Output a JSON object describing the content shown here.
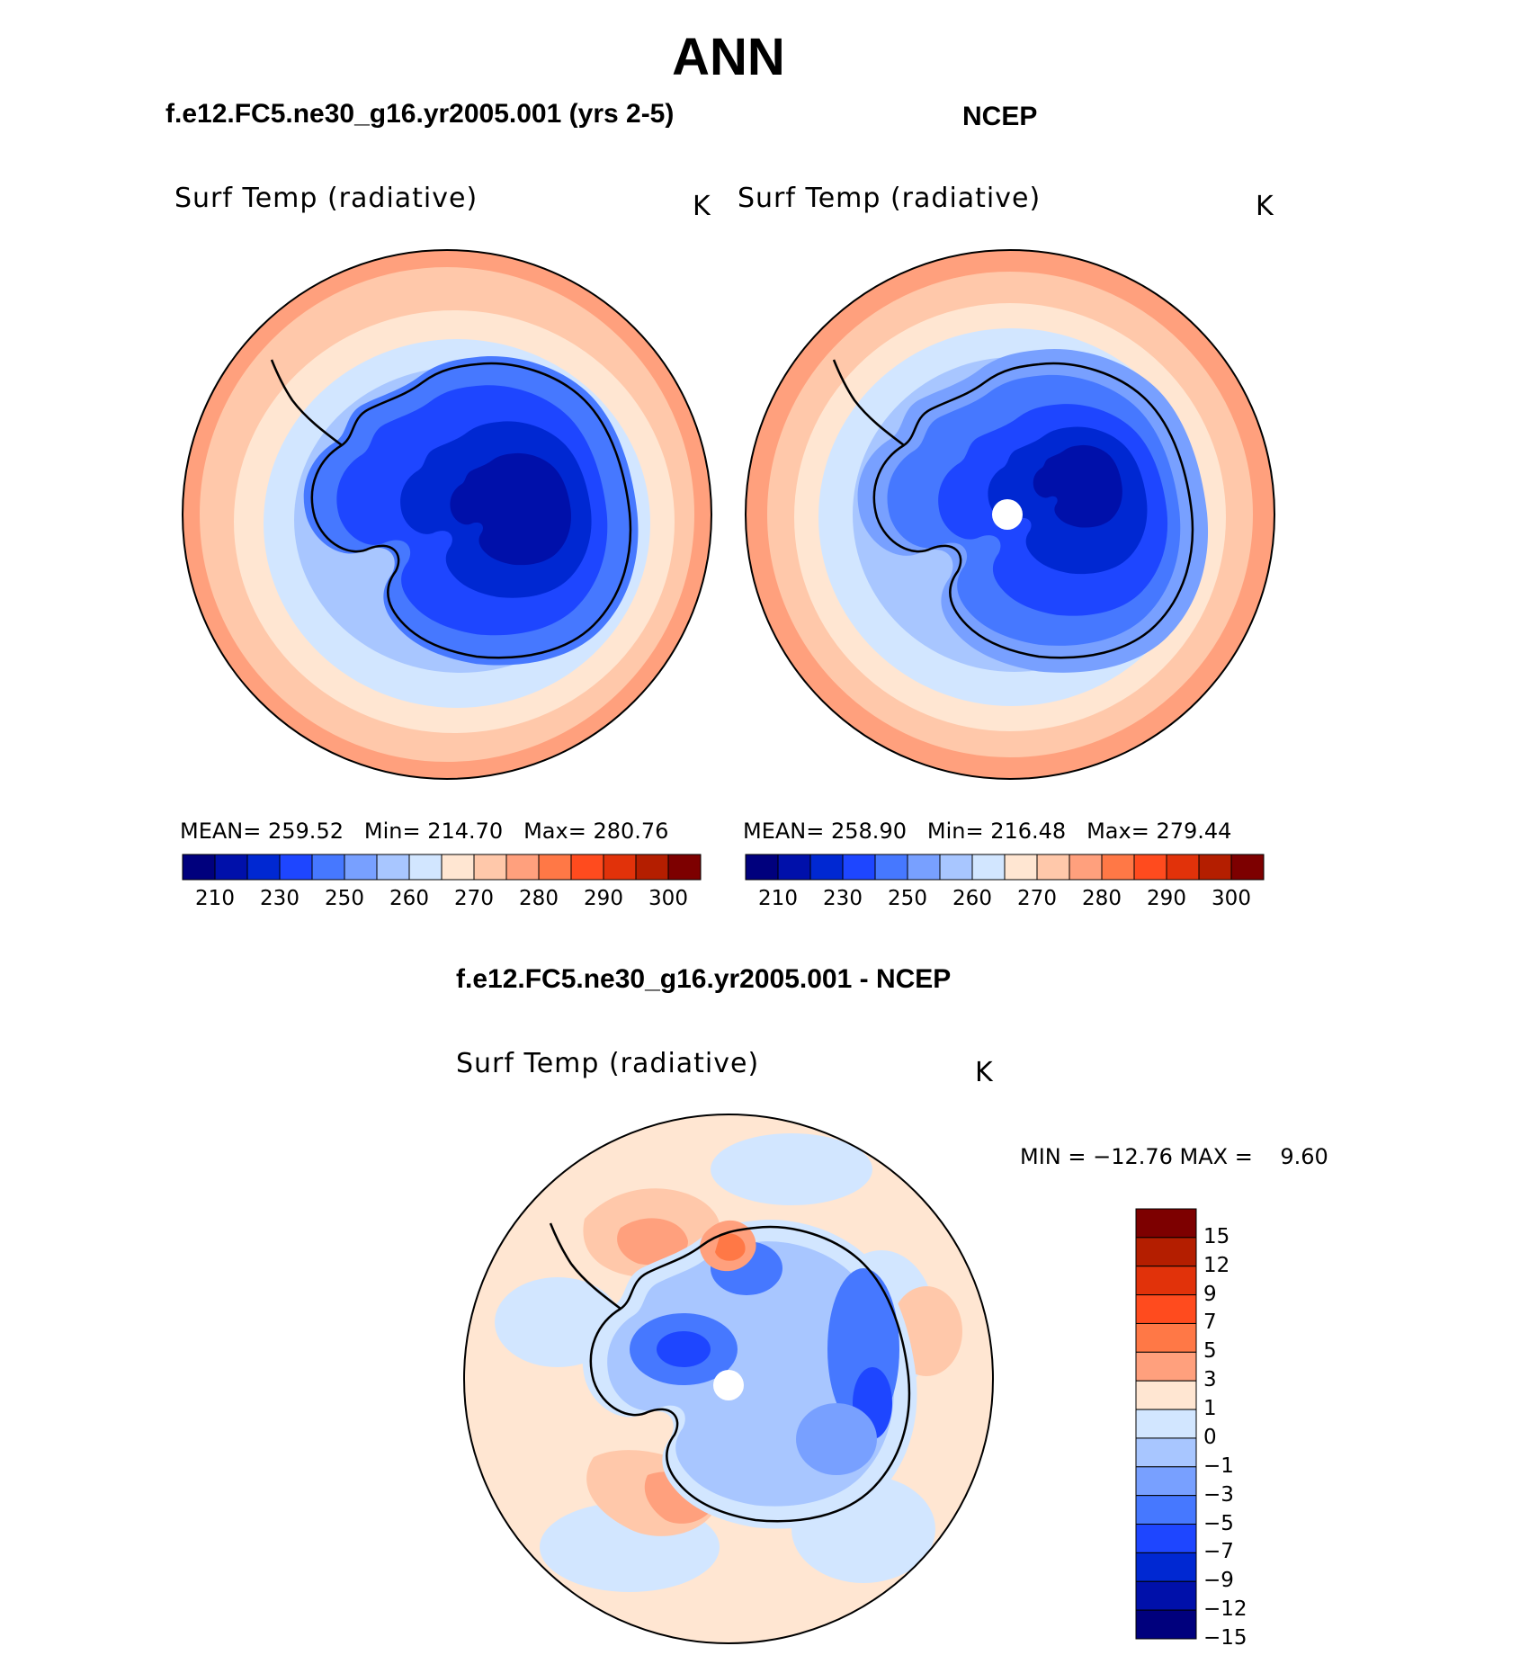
{
  "figure": {
    "season": "ANN",
    "panels": [
      {
        "id": "model",
        "header": "f.e12.FC5.ne30_g16.yr2005.001 (yrs 2-5)",
        "variable": "Surf Temp (radiative)",
        "units": "K",
        "stats": {
          "mean_label": "MEAN=",
          "mean": "259.52",
          "min_label": "Min=",
          "min": "214.70",
          "max_label": "Max=",
          "max": "280.76"
        }
      },
      {
        "id": "obs",
        "header": "NCEP",
        "variable": "Surf Temp (radiative)",
        "units": "K",
        "stats": {
          "mean_label": "MEAN=",
          "mean": "258.90",
          "min_label": "Min=",
          "min": "216.48",
          "max_label": "Max=",
          "max": "279.44"
        }
      },
      {
        "id": "diff",
        "header": "f.e12.FC5.ne30_g16.yr2005.001 - NCEP",
        "variable": "Surf Temp (radiative)",
        "units": "K",
        "stats_text": "MIN = −12.76 MAX =    9.60"
      }
    ],
    "colorbar_abs": {
      "colors": [
        "#00007d",
        "#0010aa",
        "#0028d2",
        "#1e46ff",
        "#4678ff",
        "#78a0ff",
        "#a8c6ff",
        "#d2e6ff",
        "#ffe6d2",
        "#ffc8aa",
        "#ffa07d",
        "#ff7846",
        "#ff4b1e",
        "#e1320a",
        "#b41e00",
        "#7d0000"
      ],
      "labels": [
        "210",
        "230",
        "250",
        "260",
        "270",
        "280",
        "290",
        "300"
      ]
    },
    "colorbar_diff": {
      "colors": [
        "#7d0000",
        "#b41e00",
        "#e1320a",
        "#ff4b1e",
        "#ff7846",
        "#ffa07d",
        "#ffe6d2",
        "#d2e6ff",
        "#a8c6ff",
        "#78a0ff",
        "#4678ff",
        "#1e46ff",
        "#0028d2",
        "#0010aa",
        "#00007d"
      ],
      "labels": [
        "15",
        "12",
        "9",
        "7",
        "5",
        "3",
        "1",
        "0",
        "−1",
        "−3",
        "−5",
        "−7",
        "−9",
        "−12",
        "−15"
      ]
    }
  }
}
